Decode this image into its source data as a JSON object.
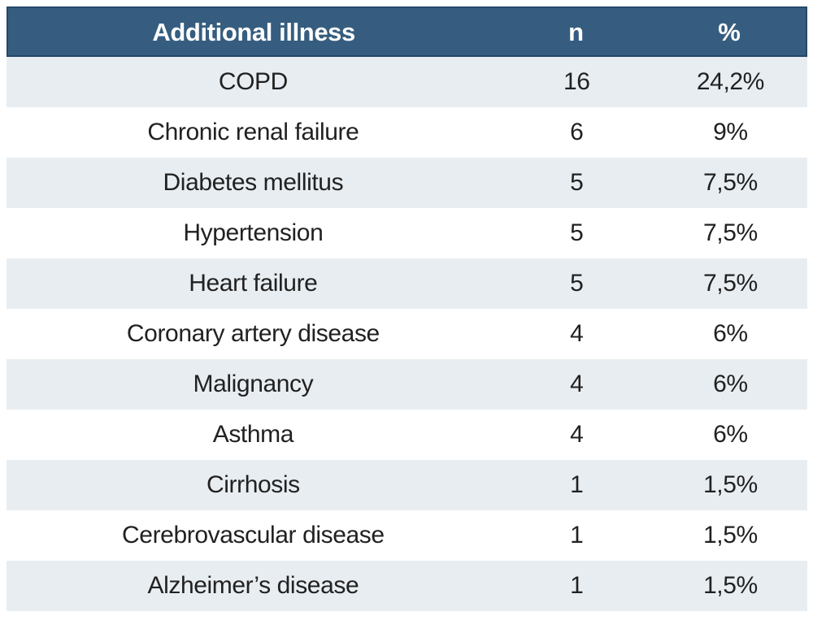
{
  "colors": {
    "header_bg": "#365d7f",
    "header_border": "#24466a",
    "header_text": "#ffffff",
    "row_alt_bg": "#e8edf1",
    "row_bg": "#ffffff",
    "body_text": "#212121"
  },
  "chart_data": {
    "type": "table",
    "title": "",
    "columns": [
      "Additional illness",
      "n",
      "%"
    ],
    "rows": [
      [
        "COPD",
        "16",
        "24,2%"
      ],
      [
        "Chronic renal failure",
        "6",
        "9%"
      ],
      [
        "Diabetes mellitus",
        "5",
        "7,5%"
      ],
      [
        "Hypertension",
        "5",
        "7,5%"
      ],
      [
        "Heart failure",
        "5",
        "7,5%"
      ],
      [
        "Coronary artery disease",
        "4",
        "6%"
      ],
      [
        "Malignancy",
        "4",
        "6%"
      ],
      [
        "Asthma",
        "4",
        "6%"
      ],
      [
        "Cirrhosis",
        "1",
        "1,5%"
      ],
      [
        "Cerebrovascular disease",
        "1",
        "1,5%"
      ],
      [
        "Alzheimer’s disease",
        "1",
        "1,5%"
      ]
    ]
  }
}
